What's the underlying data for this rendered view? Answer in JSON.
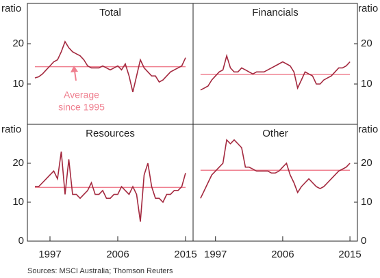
{
  "chart_data": [
    {
      "type": "line",
      "title": "Total",
      "ylabel": "ratio",
      "color": "#a3283e",
      "average_color": "#ef7f8f",
      "x": [
        1995,
        1995.5,
        1996,
        1996.5,
        1997,
        1997.5,
        1998,
        1998.5,
        1999,
        1999.5,
        2000,
        2000.5,
        2001,
        2001.5,
        2002,
        2002.5,
        2003,
        2003.5,
        2004,
        2004.5,
        2005,
        2005.5,
        2006,
        2006.5,
        2007,
        2007.5,
        2008,
        2008.5,
        2009,
        2009.5,
        2010,
        2010.5,
        2011,
        2011.5,
        2012,
        2012.5,
        2013,
        2013.5,
        2014,
        2014.5,
        2015
      ],
      "values": [
        11.5,
        11.8,
        12.5,
        13.5,
        14.5,
        15.5,
        16,
        18,
        20.5,
        19,
        18,
        17.5,
        17,
        16,
        14.5,
        14,
        14,
        14,
        14.5,
        14,
        13.5,
        14,
        14.5,
        13.5,
        15,
        12,
        8,
        12,
        16,
        14,
        13,
        12,
        12,
        10.5,
        11,
        12,
        13,
        13.5,
        14,
        14.5,
        16.5
      ],
      "average": 14.3,
      "annotation": [
        "Average",
        "since 1995"
      ],
      "xlim": [
        1994,
        2016
      ],
      "ylim": [
        0,
        30
      ],
      "yticks": [
        10,
        20
      ]
    },
    {
      "type": "line",
      "title": "Financials",
      "ylabel": "ratio",
      "color": "#a3283e",
      "average_color": "#ef7f8f",
      "x": [
        1995,
        1995.5,
        1996,
        1996.5,
        1997,
        1997.5,
        1998,
        1998.5,
        1999,
        1999.5,
        2000,
        2000.5,
        2001,
        2001.5,
        2002,
        2002.5,
        2003,
        2003.5,
        2004,
        2004.5,
        2005,
        2005.5,
        2006,
        2006.5,
        2007,
        2007.5,
        2008,
        2008.5,
        2009,
        2009.5,
        2010,
        2010.5,
        2011,
        2011.5,
        2012,
        2012.5,
        2013,
        2013.5,
        2014,
        2014.5,
        2015
      ],
      "values": [
        8.5,
        9,
        9.5,
        11,
        12,
        13,
        13.5,
        17,
        14,
        13,
        13,
        14,
        13.5,
        13,
        12.5,
        13,
        13,
        13,
        13.5,
        14,
        14.5,
        15,
        15.5,
        15,
        14.5,
        13,
        9,
        11,
        13,
        12.5,
        12,
        10,
        10,
        11,
        11.5,
        12,
        13,
        14,
        14,
        14.5,
        15.5
      ],
      "average": 12.4,
      "xlim": [
        1994,
        2016
      ],
      "ylim": [
        0,
        30
      ],
      "yticks": [
        10,
        20
      ]
    },
    {
      "type": "line",
      "title": "Resources",
      "ylabel": "ratio",
      "color": "#a3283e",
      "average_color": "#ef7f8f",
      "x": [
        1995,
        1995.5,
        1996,
        1996.5,
        1997,
        1997.5,
        1998,
        1998.5,
        1999,
        1999.5,
        2000,
        2000.5,
        2001,
        2001.5,
        2002,
        2002.5,
        2003,
        2003.5,
        2004,
        2004.5,
        2005,
        2005.5,
        2006,
        2006.5,
        2007,
        2007.5,
        2008,
        2008.5,
        2009,
        2009.5,
        2010,
        2010.5,
        2011,
        2011.5,
        2012,
        2012.5,
        2013,
        2013.5,
        2014,
        2014.5,
        2015
      ],
      "values": [
        14,
        14,
        15,
        16,
        17,
        18,
        16,
        23,
        12,
        21,
        12,
        12,
        11,
        12,
        13,
        15,
        12,
        12,
        13,
        11,
        11,
        12,
        12,
        14,
        13,
        12,
        14,
        12,
        5,
        17,
        20,
        14,
        11,
        11,
        10,
        12,
        12,
        13,
        13,
        14,
        17.5
      ],
      "average": 13.8,
      "xlim": [
        1994,
        2016
      ],
      "ylim": [
        0,
        30
      ],
      "yticks": [
        0,
        10,
        20
      ],
      "xticks": [
        1997,
        2006,
        2015
      ]
    },
    {
      "type": "line",
      "title": "Other",
      "ylabel": "ratio",
      "color": "#a3283e",
      "average_color": "#ef7f8f",
      "x": [
        1995,
        1995.5,
        1996,
        1996.5,
        1997,
        1997.5,
        1998,
        1998.5,
        1999,
        1999.5,
        2000,
        2000.5,
        2001,
        2001.5,
        2002,
        2002.5,
        2003,
        2003.5,
        2004,
        2004.5,
        2005,
        2005.5,
        2006,
        2006.5,
        2007,
        2007.5,
        2008,
        2008.5,
        2009,
        2009.5,
        2010,
        2010.5,
        2011,
        2011.5,
        2012,
        2012.5,
        2013,
        2013.5,
        2014,
        2014.5,
        2015
      ],
      "values": [
        11,
        13,
        15,
        17,
        18,
        19,
        20,
        26,
        25,
        26,
        25,
        24,
        19,
        19,
        18.5,
        18,
        18,
        18,
        18,
        17.5,
        17.5,
        18,
        19,
        20,
        17,
        15,
        12.5,
        14,
        15,
        16,
        15,
        14,
        13.5,
        14,
        15,
        16,
        17,
        18,
        18.5,
        19,
        20
      ],
      "average": 18.2,
      "xlim": [
        1994,
        2016
      ],
      "ylim": [
        0,
        30
      ],
      "yticks": [
        0,
        10,
        20
      ],
      "xticks": [
        1997,
        2006,
        2015
      ]
    }
  ],
  "sources": "Sources:  MSCI Australia; Thomson Reuters"
}
